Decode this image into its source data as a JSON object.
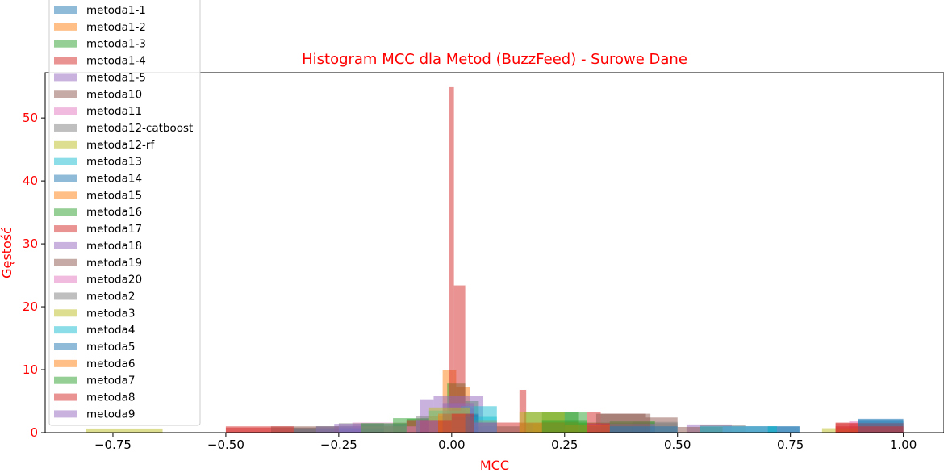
{
  "chart_data": {
    "type": "histogram",
    "title": "Histogram MCC dla Metod (BuzzFeed) - Surowe Dane",
    "xlabel": "MCC",
    "ylabel": "Gęstość",
    "xlim": [
      -0.9,
      1.09
    ],
    "ylim": [
      0,
      57.2
    ],
    "xticks": [
      -0.75,
      -0.5,
      -0.25,
      0.0,
      0.25,
      0.5,
      0.75,
      1.0
    ],
    "xtick_labels": [
      "−0.75",
      "−0.50",
      "−0.25",
      "0.00",
      "0.25",
      "0.50",
      "0.75",
      "1.00"
    ],
    "yticks": [
      0,
      10,
      20,
      30,
      40,
      50
    ],
    "ytick_labels": [
      "0",
      "10",
      "20",
      "30",
      "40",
      "50"
    ],
    "grid": false,
    "legend_position": "upper-left",
    "label_color": "#ff0000",
    "bar_opacity": 0.5,
    "series": [
      {
        "name": "metoda1-1",
        "color": "#1f77b4",
        "bins": [
          [
            -0.05,
            0.0,
            2.0
          ],
          [
            0.0,
            0.05,
            3.8
          ],
          [
            0.05,
            0.1,
            1.5
          ],
          [
            0.6,
            0.77,
            1.0
          ],
          [
            0.9,
            1.0,
            2.1
          ]
        ]
      },
      {
        "name": "metoda1-2",
        "color": "#ff7f0e",
        "bins": [
          [
            -0.02,
            0.01,
            9.9
          ],
          [
            0.01,
            0.04,
            7.2
          ],
          [
            0.15,
            0.25,
            1.5
          ],
          [
            0.88,
            1.0,
            1.5
          ]
        ]
      },
      {
        "name": "metoda1-3",
        "color": "#2ca02c",
        "bins": [
          [
            -0.3,
            -0.1,
            1.0
          ],
          [
            -0.1,
            -0.05,
            2.2
          ],
          [
            -0.01,
            0.03,
            7.8
          ],
          [
            0.03,
            0.06,
            5.0
          ],
          [
            0.16,
            0.28,
            3.3
          ],
          [
            0.28,
            0.45,
            1.6
          ]
        ]
      },
      {
        "name": "metoda1-4",
        "color": "#d62728",
        "bins": [
          [
            -0.5,
            -0.4,
            0.8
          ],
          [
            -0.005,
            0.005,
            54.9
          ],
          [
            0.005,
            0.03,
            23.4
          ],
          [
            0.15,
            0.165,
            6.8
          ],
          [
            0.3,
            0.33,
            3.3
          ],
          [
            0.85,
            1.0,
            1.6
          ]
        ]
      },
      {
        "name": "metoda1-5",
        "color": "#9467bd",
        "bins": [
          [
            -0.07,
            -0.04,
            5.3
          ],
          [
            -0.04,
            0.07,
            5.8
          ],
          [
            0.52,
            0.62,
            1.3
          ]
        ]
      },
      {
        "name": "metoda10",
        "color": "#8c564b",
        "bins": [
          [
            -0.4,
            -0.3,
            0.8
          ],
          [
            0.0,
            0.05,
            1.0
          ],
          [
            0.32,
            0.43,
            3.0
          ],
          [
            0.43,
            0.5,
            2.4
          ],
          [
            0.5,
            0.6,
            0.9
          ]
        ]
      },
      {
        "name": "metoda11",
        "color": "#e377c2",
        "bins": [
          [
            -0.22,
            -0.1,
            1.6
          ],
          [
            0.88,
            1.0,
            1.8
          ]
        ]
      },
      {
        "name": "metoda12-catboost",
        "color": "#7f7f7f",
        "bins": [
          [
            -0.25,
            -0.15,
            1.5
          ],
          [
            0.4,
            0.5,
            1.7
          ],
          [
            0.55,
            0.65,
            1.2
          ]
        ]
      },
      {
        "name": "metoda12-rf",
        "color": "#bcbd22",
        "bins": [
          [
            -0.81,
            -0.64,
            0.65
          ],
          [
            0.18,
            0.3,
            1.5
          ],
          [
            0.82,
            0.9,
            0.7
          ]
        ]
      },
      {
        "name": "metoda13",
        "color": "#17becf",
        "bins": [
          [
            -0.05,
            0.02,
            3.5
          ],
          [
            0.02,
            0.1,
            4.2
          ],
          [
            0.55,
            0.72,
            1.0
          ],
          [
            0.9,
            1.0,
            1.9
          ]
        ]
      },
      {
        "name": "metoda14",
        "color": "#1f77b4",
        "bins": [
          [
            -0.35,
            -0.15,
            0.7
          ],
          [
            -0.02,
            0.06,
            2.8
          ],
          [
            0.7,
            0.77,
            1.0
          ]
        ]
      },
      {
        "name": "metoda15",
        "color": "#ff7f0e",
        "bins": [
          [
            0.0,
            0.1,
            2.0
          ],
          [
            0.2,
            0.28,
            1.7
          ]
        ]
      },
      {
        "name": "metoda16",
        "color": "#2ca02c",
        "bins": [
          [
            -0.13,
            -0.05,
            2.3
          ],
          [
            0.2,
            0.3,
            3.2
          ],
          [
            0.35,
            0.45,
            1.8
          ]
        ]
      },
      {
        "name": "metoda17",
        "color": "#d62728",
        "bins": [
          [
            -0.1,
            0.0,
            2.0
          ],
          [
            0.05,
            0.25,
            1.6
          ],
          [
            0.85,
            1.0,
            1.5
          ]
        ]
      },
      {
        "name": "metoda18",
        "color": "#9467bd",
        "bins": [
          [
            -0.26,
            -0.1,
            1.4
          ],
          [
            -0.02,
            0.05,
            4.7
          ],
          [
            0.3,
            0.45,
            1.4
          ]
        ]
      },
      {
        "name": "metoda19",
        "color": "#8c564b",
        "bins": [
          [
            -0.4,
            -0.25,
            1.0
          ],
          [
            0.05,
            0.15,
            1.0
          ],
          [
            0.33,
            0.44,
            3.0
          ]
        ]
      },
      {
        "name": "metoda20",
        "color": "#e377c2",
        "bins": [
          [
            -0.2,
            -0.08,
            1.0
          ],
          [
            0.6,
            0.7,
            1.0
          ]
        ]
      },
      {
        "name": "metoda2",
        "color": "#7f7f7f",
        "bins": [
          [
            -0.08,
            0.0,
            2.6
          ],
          [
            0.45,
            0.5,
            1.5
          ]
        ]
      },
      {
        "name": "metoda3",
        "color": "#bcbd22",
        "bins": [
          [
            -0.05,
            0.04,
            4.0
          ],
          [
            0.15,
            0.25,
            3.3
          ]
        ]
      },
      {
        "name": "metoda4",
        "color": "#17becf",
        "bins": [
          [
            0.0,
            0.1,
            2.5
          ],
          [
            0.6,
            0.72,
            1.0
          ]
        ]
      },
      {
        "name": "metoda5",
        "color": "#1f77b4",
        "bins": [
          [
            -0.02,
            0.06,
            3.0
          ],
          [
            0.3,
            0.5,
            1.0
          ],
          [
            0.9,
            1.0,
            2.2
          ]
        ]
      },
      {
        "name": "metoda6",
        "color": "#ff7f0e",
        "bins": [
          [
            -0.03,
            0.03,
            3.0
          ],
          [
            0.25,
            0.35,
            1.2
          ]
        ]
      },
      {
        "name": "metoda7",
        "color": "#2ca02c",
        "bins": [
          [
            -0.2,
            -0.1,
            1.5
          ],
          [
            0.2,
            0.3,
            2.0
          ]
        ]
      },
      {
        "name": "metoda8",
        "color": "#d62728",
        "bins": [
          [
            -0.5,
            -0.35,
            1.0
          ],
          [
            -0.07,
            0.0,
            2.0
          ],
          [
            0.0,
            0.05,
            3.0
          ],
          [
            0.3,
            0.35,
            1.5
          ],
          [
            0.85,
            1.0,
            1.0
          ]
        ]
      },
      {
        "name": "metoda9",
        "color": "#9467bd",
        "bins": [
          [
            -0.3,
            -0.2,
            1.0
          ],
          [
            -0.08,
            -0.03,
            2.0
          ],
          [
            0.05,
            0.1,
            1.6
          ]
        ]
      }
    ]
  }
}
